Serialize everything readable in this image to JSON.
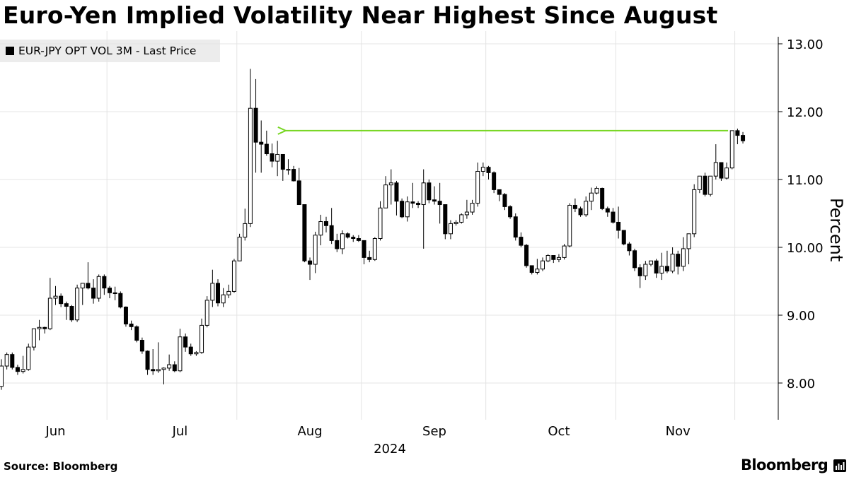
{
  "chart_data": {
    "type": "candlestick",
    "title": "Euro-Yen Implied Volatility Near Highest Since August",
    "series_name": "EUR-JPY OPT VOL 3M - Last Price",
    "ylabel": "Percent",
    "ylim": [
      7.5,
      13.1
    ],
    "yticks": [
      8,
      9,
      10,
      11,
      12,
      13
    ],
    "ytick_labels": [
      "8.00",
      "9.00",
      "10.00",
      "11.00",
      "12.00",
      "13.00"
    ],
    "xtick_labels": [
      "Jun",
      "Jul",
      "Aug",
      "Sep",
      "Oct",
      "Nov"
    ],
    "year_label": "2024",
    "grid": true,
    "source": "Source: Bloomberg",
    "brand": "Bloomberg",
    "annotation": {
      "type": "arrow",
      "from_date_index": 134,
      "to_date_index": 52,
      "value": 11.72,
      "color": "#77d622"
    },
    "candles": [
      [
        7.95,
        8.25,
        7.95,
        7.9,
        8.35
      ],
      [
        8.25,
        8.42,
        8.23,
        8.2,
        8.45
      ],
      [
        8.42,
        8.23,
        8.45,
        8.2,
        8.45
      ],
      [
        8.23,
        8.17,
        8.25,
        8.12,
        8.27
      ],
      [
        8.17,
        8.2,
        8.22,
        8.14,
        8.4
      ],
      [
        8.2,
        8.53,
        8.2,
        8.18,
        8.58
      ],
      [
        8.53,
        8.8,
        8.52,
        8.48,
        8.8
      ],
      [
        8.8,
        8.82,
        8.78,
        8.63,
        8.93
      ],
      [
        8.82,
        8.8,
        8.85,
        8.73,
        8.83
      ],
      [
        8.8,
        9.25,
        8.8,
        8.78,
        9.55
      ],
      [
        9.25,
        9.28,
        9.22,
        9.15,
        9.43
      ],
      [
        9.28,
        9.17,
        9.3,
        9.12,
        9.32
      ],
      [
        9.17,
        9.13,
        9.18,
        8.93,
        9.2
      ],
      [
        9.13,
        8.93,
        9.13,
        8.9,
        9.15
      ],
      [
        8.93,
        9.4,
        8.92,
        8.9,
        9.45
      ],
      [
        9.4,
        9.47,
        9.37,
        9.15,
        9.47
      ],
      [
        9.47,
        9.4,
        9.5,
        9.38,
        9.78
      ],
      [
        9.4,
        9.25,
        9.4,
        9.17,
        9.53
      ],
      [
        9.25,
        9.57,
        9.25,
        9.2,
        9.6
      ],
      [
        9.57,
        9.4,
        9.57,
        9.3,
        9.6
      ],
      [
        9.4,
        9.33,
        9.42,
        9.25,
        9.43
      ],
      [
        9.33,
        9.32,
        9.35,
        9.22,
        9.42
      ],
      [
        9.32,
        9.12,
        9.32,
        9.1,
        9.35
      ],
      [
        9.12,
        8.87,
        9.12,
        8.83,
        9.13
      ],
      [
        8.87,
        8.83,
        8.9,
        8.78,
        8.92
      ],
      [
        8.83,
        8.63,
        8.85,
        8.6,
        8.85
      ],
      [
        8.63,
        8.47,
        8.65,
        8.43,
        8.67
      ],
      [
        8.47,
        8.2,
        8.47,
        8.12,
        8.48
      ],
      [
        8.2,
        8.18,
        8.22,
        8.12,
        8.5
      ],
      [
        8.18,
        8.2,
        8.2,
        8.15,
        8.6
      ],
      [
        8.2,
        8.22,
        8.22,
        7.98,
        8.23
      ],
      [
        8.22,
        8.27,
        8.25,
        8.18,
        8.42
      ],
      [
        8.27,
        8.18,
        8.3,
        8.16,
        8.32
      ],
      [
        8.18,
        8.68,
        8.18,
        8.16,
        8.8
      ],
      [
        8.68,
        8.53,
        8.67,
        8.46,
        8.73
      ],
      [
        8.53,
        8.43,
        8.55,
        8.4,
        8.58
      ],
      [
        8.43,
        8.45,
        8.42,
        8.4,
        8.47
      ],
      [
        8.45,
        8.85,
        8.45,
        8.43,
        8.95
      ],
      [
        8.85,
        9.22,
        8.85,
        8.82,
        9.28
      ],
      [
        9.22,
        9.47,
        9.2,
        9.12,
        9.67
      ],
      [
        9.47,
        9.18,
        9.47,
        9.13,
        9.53
      ],
      [
        9.18,
        9.3,
        9.17,
        9.12,
        9.4
      ],
      [
        9.3,
        9.35,
        9.32,
        9.25,
        9.45
      ],
      [
        9.35,
        9.8,
        9.37,
        9.33,
        9.83
      ],
      [
        9.8,
        10.15,
        9.82,
        9.8,
        10.2
      ],
      [
        10.15,
        10.35,
        10.18,
        10.1,
        10.57
      ],
      [
        10.35,
        12.05,
        10.37,
        10.3,
        12.63
      ],
      [
        12.05,
        11.55,
        12.05,
        11.1,
        12.48
      ],
      [
        11.55,
        11.52,
        11.53,
        11.1,
        11.87
      ],
      [
        11.52,
        11.38,
        11.52,
        11.35,
        11.72
      ],
      [
        11.38,
        11.27,
        11.4,
        11.18,
        11.53
      ],
      [
        11.27,
        11.37,
        11.28,
        11.05,
        11.57
      ],
      [
        11.37,
        11.15,
        11.37,
        10.98,
        11.37
      ],
      [
        11.15,
        11.15,
        11.13,
        11.07,
        11.3
      ],
      [
        11.15,
        10.98,
        11.17,
        10.97,
        11.2
      ],
      [
        10.98,
        10.63,
        11.17,
        10.63,
        11.17
      ],
      [
        10.63,
        9.8,
        10.63,
        9.78,
        10.63
      ],
      [
        9.8,
        9.75,
        9.78,
        9.52,
        9.85
      ],
      [
        9.75,
        10.18,
        9.75,
        9.62,
        10.23
      ],
      [
        10.18,
        10.38,
        10.18,
        10.03,
        10.48
      ],
      [
        10.38,
        10.32,
        10.4,
        10.22,
        10.45
      ],
      [
        10.32,
        10.1,
        10.3,
        10.05,
        10.58
      ],
      [
        10.1,
        9.98,
        10.13,
        9.93,
        10.2
      ],
      [
        9.98,
        10.2,
        10.0,
        9.9,
        10.25
      ],
      [
        10.2,
        10.15,
        10.22,
        10.13,
        10.22
      ],
      [
        10.15,
        10.13,
        10.15,
        10.08,
        10.18
      ],
      [
        10.13,
        10.1,
        10.15,
        10.08,
        10.18
      ],
      [
        10.1,
        9.85,
        10.1,
        9.75,
        10.1
      ],
      [
        9.85,
        9.82,
        9.85,
        9.78,
        9.95
      ],
      [
        9.82,
        10.13,
        9.82,
        9.8,
        10.15
      ],
      [
        10.13,
        10.58,
        10.15,
        10.1,
        10.68
      ],
      [
        10.58,
        10.92,
        10.58,
        10.58,
        11.05
      ],
      [
        10.92,
        10.95,
        10.92,
        10.63,
        11.15
      ],
      [
        10.95,
        10.68,
        10.95,
        10.47,
        10.98
      ],
      [
        10.68,
        10.45,
        10.7,
        10.43,
        10.72
      ],
      [
        10.45,
        10.67,
        10.48,
        10.38,
        10.75
      ],
      [
        10.67,
        10.65,
        10.7,
        10.58,
        10.95
      ],
      [
        10.65,
        10.63,
        10.65,
        10.58,
        10.68
      ],
      [
        10.63,
        10.95,
        10.62,
        9.98,
        11.15
      ],
      [
        10.95,
        10.7,
        10.95,
        10.65,
        11.0
      ],
      [
        10.7,
        10.68,
        10.7,
        10.63,
        10.9
      ],
      [
        10.68,
        10.63,
        10.67,
        10.35,
        10.95
      ],
      [
        10.63,
        10.2,
        10.62,
        10.12,
        10.63
      ],
      [
        10.2,
        10.35,
        10.22,
        10.12,
        10.4
      ],
      [
        10.35,
        10.37,
        10.33,
        10.32,
        10.4
      ],
      [
        10.37,
        10.48,
        10.35,
        10.35,
        10.5
      ],
      [
        10.48,
        10.52,
        10.47,
        10.42,
        10.7
      ],
      [
        10.52,
        10.65,
        10.52,
        10.48,
        10.7
      ],
      [
        10.65,
        11.12,
        10.65,
        10.6,
        11.25
      ],
      [
        11.12,
        11.18,
        11.12,
        11.05,
        11.25
      ],
      [
        11.18,
        11.1,
        11.17,
        11.0,
        11.2
      ],
      [
        11.1,
        10.85,
        11.1,
        10.8,
        11.12
      ],
      [
        10.85,
        10.78,
        10.85,
        10.68,
        10.82
      ],
      [
        10.78,
        10.6,
        10.78,
        10.55,
        10.8
      ],
      [
        10.6,
        10.45,
        10.63,
        10.42,
        10.62
      ],
      [
        10.45,
        10.15,
        10.48,
        10.1,
        10.5
      ],
      [
        10.15,
        10.03,
        10.15,
        10.0,
        10.22
      ],
      [
        10.03,
        9.73,
        10.03,
        9.7,
        10.05
      ],
      [
        9.73,
        9.63,
        9.73,
        9.6,
        9.73
      ],
      [
        9.63,
        9.68,
        9.65,
        9.6,
        9.83
      ],
      [
        9.68,
        9.8,
        9.7,
        9.65,
        9.85
      ],
      [
        9.8,
        9.88,
        9.8,
        9.78,
        9.9
      ],
      [
        9.88,
        9.82,
        9.85,
        9.77,
        9.87
      ],
      [
        9.82,
        9.85,
        9.82,
        9.78,
        9.9
      ],
      [
        9.85,
        10.02,
        9.85,
        9.82,
        10.05
      ],
      [
        10.02,
        10.62,
        10.02,
        10.0,
        10.65
      ],
      [
        10.62,
        10.57,
        10.62,
        10.52,
        10.72
      ],
      [
        10.57,
        10.48,
        10.6,
        10.45,
        10.6
      ],
      [
        10.48,
        10.68,
        10.5,
        10.45,
        10.75
      ],
      [
        10.68,
        10.8,
        10.68,
        10.55,
        10.88
      ],
      [
        10.8,
        10.87,
        10.8,
        10.78,
        10.9
      ],
      [
        10.87,
        10.57,
        10.88,
        10.55,
        10.88
      ],
      [
        10.57,
        10.52,
        10.58,
        10.45,
        10.6
      ],
      [
        10.52,
        10.37,
        10.53,
        10.35,
        10.58
      ],
      [
        10.37,
        10.25,
        10.38,
        10.13,
        10.6
      ],
      [
        10.25,
        10.05,
        10.25,
        10.03,
        10.25
      ],
      [
        10.05,
        9.95,
        10.08,
        9.88,
        10.08
      ],
      [
        9.95,
        9.7,
        9.95,
        9.65,
        9.98
      ],
      [
        9.7,
        9.58,
        9.72,
        9.4,
        9.75
      ],
      [
        9.58,
        9.75,
        9.58,
        9.52,
        9.8
      ],
      [
        9.75,
        9.8,
        9.75,
        9.72,
        9.8
      ],
      [
        9.8,
        9.62,
        9.82,
        9.55,
        9.83
      ],
      [
        9.62,
        9.72,
        9.62,
        9.52,
        9.92
      ],
      [
        9.72,
        9.65,
        9.72,
        9.62,
        9.95
      ],
      [
        9.65,
        9.9,
        9.67,
        9.62,
        10.0
      ],
      [
        9.9,
        9.72,
        9.9,
        9.6,
        9.95
      ],
      [
        9.72,
        9.98,
        9.72,
        9.65,
        10.15
      ],
      [
        9.98,
        10.2,
        9.98,
        9.75,
        10.2
      ],
      [
        10.2,
        10.85,
        10.2,
        10.15,
        10.93
      ],
      [
        10.85,
        11.05,
        10.85,
        10.8,
        11.05
      ],
      [
        11.05,
        10.78,
        11.05,
        10.75,
        11.1
      ],
      [
        10.78,
        11.05,
        10.8,
        10.75,
        11.05
      ],
      [
        11.05,
        11.25,
        11.05,
        11.0,
        11.52
      ],
      [
        11.25,
        11.02,
        11.25,
        10.98,
        11.25
      ],
      [
        11.02,
        11.17,
        11.02,
        11.0,
        11.25
      ],
      [
        11.17,
        11.72,
        11.18,
        11.15,
        11.72
      ],
      [
        11.72,
        11.65,
        11.72,
        11.52,
        11.75
      ],
      [
        11.65,
        11.57,
        11.67,
        11.53,
        11.7
      ]
    ]
  }
}
